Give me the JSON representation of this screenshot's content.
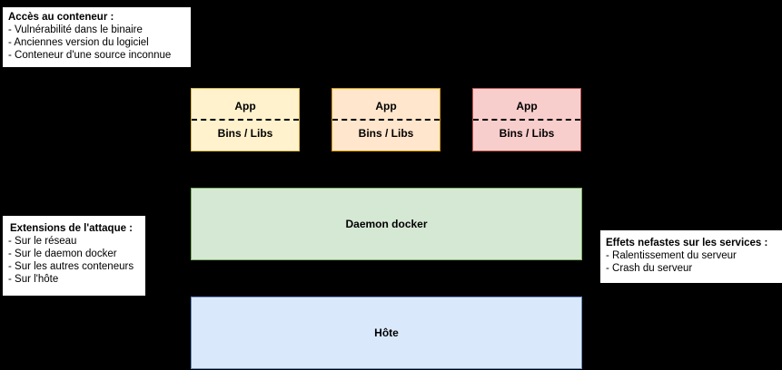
{
  "notes": {
    "acces": {
      "title": "Accès au conteneur :",
      "items": [
        "Vulnérabilité dans le binaire",
        "Anciennes version du logiciel",
        "Conteneur d'une source inconnue"
      ]
    },
    "extensions": {
      "title": "Extensions de l'attaque :",
      "items": [
        "Sur le réseau",
        "Sur le daemon docker",
        "Sur les autres conteneurs",
        "Sur l'hôte"
      ]
    },
    "effets": {
      "title": "Effets nefastes sur les services :",
      "items": [
        "Ralentissement du serveur",
        "Crash du serveur"
      ]
    }
  },
  "containers": [
    {
      "app": "App",
      "libs": "Bins / Libs",
      "fill": "#fff2cc",
      "stroke": "#d6b656"
    },
    {
      "app": "App",
      "libs": "Bins / Libs",
      "fill": "#ffe6cc",
      "stroke": "#d79b00"
    },
    {
      "app": "App",
      "libs": "Bins / Libs",
      "fill": "#f8cecc",
      "stroke": "#b85450"
    }
  ],
  "layers": {
    "daemon": {
      "label": "Daemon docker",
      "fill": "#d5e8d4",
      "stroke": "#82b366"
    },
    "host": {
      "label": "Hôte",
      "fill": "#dae8fc",
      "stroke": "#6c8ebf"
    }
  }
}
